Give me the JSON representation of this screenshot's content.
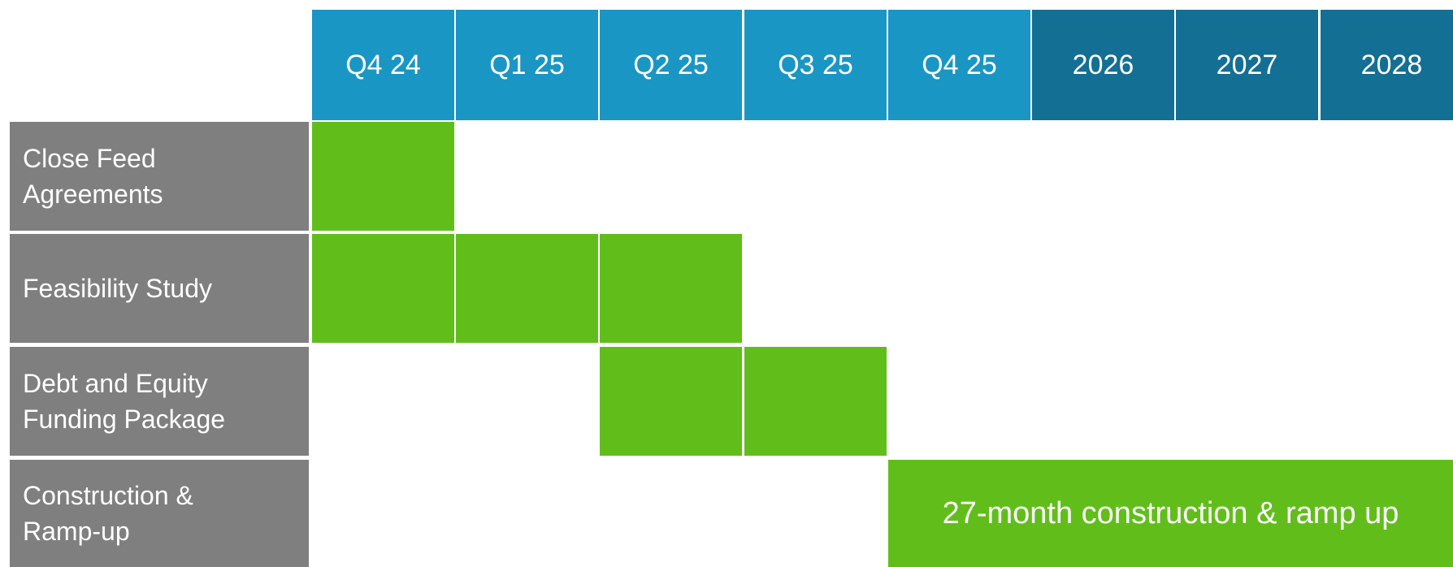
{
  "columns": [
    {
      "label": "Q4 24",
      "kind": "quarter"
    },
    {
      "label": "Q1 25",
      "kind": "quarter"
    },
    {
      "label": "Q2 25",
      "kind": "quarter"
    },
    {
      "label": "Q3 25",
      "kind": "quarter"
    },
    {
      "label": "Q4 25",
      "kind": "quarter"
    },
    {
      "label": "2026",
      "kind": "year"
    },
    {
      "label": "2027",
      "kind": "year"
    },
    {
      "label": "2028",
      "kind": "year"
    }
  ],
  "rows": [
    {
      "label": "Close Feed\nAgreements",
      "active": [
        0
      ]
    },
    {
      "label": "Feasibility Study",
      "active": [
        0,
        1,
        2
      ]
    },
    {
      "label": "Debt and Equity\nFunding Package",
      "active": [
        2,
        3
      ]
    },
    {
      "label": "Construction &\nRamp-up",
      "active": [],
      "bar": {
        "start": 4,
        "end": 7,
        "label": "27-month construction & ramp up"
      }
    }
  ],
  "colors": {
    "quarter_header": "#1a96c4",
    "year_header": "#136f93",
    "row_label_bg": "#7f7f7f",
    "active_cell": "#61be1a"
  }
}
